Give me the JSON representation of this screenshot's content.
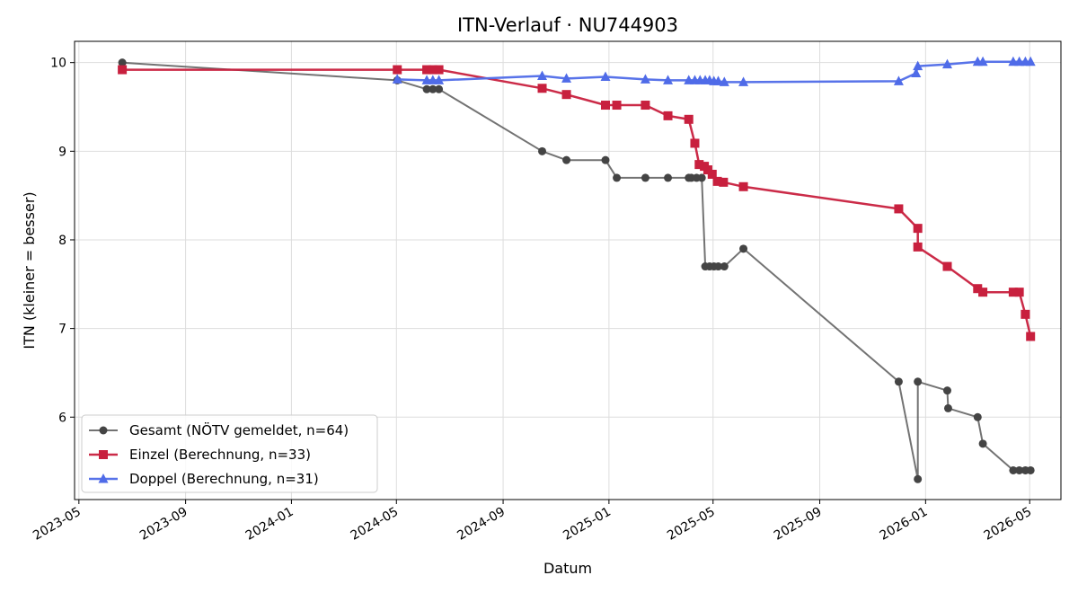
{
  "chart_data": {
    "type": "line",
    "title": "ITN-Verlauf · NU744903",
    "xlabel": "Datum",
    "ylabel": "ITN  (kleiner = besser)",
    "x_axis": {
      "kind": "date",
      "range": [
        "2023-04-26",
        "2026-06-06"
      ]
    },
    "x_ticks": [
      "2023-05",
      "2023-09",
      "2024-01",
      "2024-05",
      "2024-09",
      "2025-01",
      "2025-05",
      "2025-09",
      "2026-01",
      "2026-05"
    ],
    "ylim": [
      5.07,
      10.24
    ],
    "y_ticks": [
      6,
      7,
      8,
      9,
      10
    ],
    "grid": true,
    "legend_position": "lower-left",
    "series": [
      {
        "name": "Gesamt (NÖTV gemeldet, n=64)",
        "color": "#444444",
        "marker": "circle",
        "points": [
          [
            "2023-06-20",
            10.0
          ],
          [
            "2024-05-02",
            9.8
          ],
          [
            "2024-06-05",
            9.7
          ],
          [
            "2024-06-12",
            9.7
          ],
          [
            "2024-06-19",
            9.7
          ],
          [
            "2024-10-16",
            9.0
          ],
          [
            "2024-11-13",
            8.9
          ],
          [
            "2024-12-28",
            8.9
          ],
          [
            "2025-01-10",
            8.7
          ],
          [
            "2025-02-12",
            8.7
          ],
          [
            "2025-03-10",
            8.7
          ],
          [
            "2025-04-03",
            8.7
          ],
          [
            "2025-04-06",
            8.7
          ],
          [
            "2025-04-12",
            8.7
          ],
          [
            "2025-04-18",
            8.7
          ],
          [
            "2025-04-22",
            7.7
          ],
          [
            "2025-04-27",
            7.7
          ],
          [
            "2025-05-02",
            7.7
          ],
          [
            "2025-05-07",
            7.7
          ],
          [
            "2025-05-14",
            7.7
          ],
          [
            "2025-06-05",
            7.9
          ],
          [
            "2025-12-01",
            6.4
          ],
          [
            "2025-12-23",
            5.3
          ],
          [
            "2025-12-23",
            6.4
          ],
          [
            "2026-01-26",
            6.3
          ],
          [
            "2026-01-27",
            6.1
          ],
          [
            "2026-03-02",
            6.0
          ],
          [
            "2026-03-08",
            5.7
          ],
          [
            "2026-04-12",
            5.4
          ],
          [
            "2026-04-19",
            5.4
          ],
          [
            "2026-04-26",
            5.4
          ],
          [
            "2026-05-02",
            5.4
          ]
        ]
      },
      {
        "name": "Einzel (Berechnung, n=33)",
        "color": "#c8203e",
        "marker": "square",
        "points": [
          [
            "2023-06-20",
            9.92
          ],
          [
            "2024-05-02",
            9.92
          ],
          [
            "2024-06-05",
            9.92
          ],
          [
            "2024-06-12",
            9.92
          ],
          [
            "2024-06-19",
            9.92
          ],
          [
            "2024-10-16",
            9.71
          ],
          [
            "2024-11-13",
            9.64
          ],
          [
            "2024-12-28",
            9.52
          ],
          [
            "2025-01-10",
            9.52
          ],
          [
            "2025-02-12",
            9.52
          ],
          [
            "2025-03-10",
            9.4
          ],
          [
            "2025-04-03",
            9.36
          ],
          [
            "2025-04-10",
            9.09
          ],
          [
            "2025-04-15",
            8.85
          ],
          [
            "2025-04-21",
            8.83
          ],
          [
            "2025-04-25",
            8.79
          ],
          [
            "2025-04-30",
            8.74
          ],
          [
            "2025-05-06",
            8.66
          ],
          [
            "2025-05-13",
            8.65
          ],
          [
            "2025-06-05",
            8.6
          ],
          [
            "2025-12-01",
            8.35
          ],
          [
            "2025-12-23",
            8.13
          ],
          [
            "2025-12-23",
            7.92
          ],
          [
            "2026-01-26",
            7.7
          ],
          [
            "2026-03-02",
            7.45
          ],
          [
            "2026-03-08",
            7.41
          ],
          [
            "2026-04-12",
            7.41
          ],
          [
            "2026-04-19",
            7.41
          ],
          [
            "2026-04-26",
            7.16
          ],
          [
            "2026-05-02",
            6.91
          ]
        ]
      },
      {
        "name": "Doppel (Berechnung, n=31)",
        "color": "#4f6be8",
        "marker": "triangle",
        "points": [
          [
            "2024-05-02",
            9.81
          ],
          [
            "2024-06-05",
            9.8
          ],
          [
            "2024-06-12",
            9.8
          ],
          [
            "2024-06-19",
            9.8
          ],
          [
            "2024-10-16",
            9.85
          ],
          [
            "2024-11-13",
            9.82
          ],
          [
            "2024-12-28",
            9.84
          ],
          [
            "2025-02-12",
            9.81
          ],
          [
            "2025-03-10",
            9.8
          ],
          [
            "2025-04-03",
            9.8
          ],
          [
            "2025-04-10",
            9.8
          ],
          [
            "2025-04-16",
            9.8
          ],
          [
            "2025-04-22",
            9.8
          ],
          [
            "2025-04-27",
            9.8
          ],
          [
            "2025-05-02",
            9.79
          ],
          [
            "2025-05-07",
            9.79
          ],
          [
            "2025-05-14",
            9.78
          ],
          [
            "2025-06-05",
            9.78
          ],
          [
            "2025-12-01",
            9.79
          ],
          [
            "2025-12-21",
            9.88
          ],
          [
            "2025-12-23",
            9.96
          ],
          [
            "2026-01-26",
            9.98
          ],
          [
            "2026-03-02",
            10.01
          ],
          [
            "2026-03-08",
            10.01
          ],
          [
            "2026-04-12",
            10.01
          ],
          [
            "2026-04-19",
            10.01
          ],
          [
            "2026-04-26",
            10.01
          ],
          [
            "2026-05-02",
            10.01
          ]
        ]
      }
    ]
  }
}
